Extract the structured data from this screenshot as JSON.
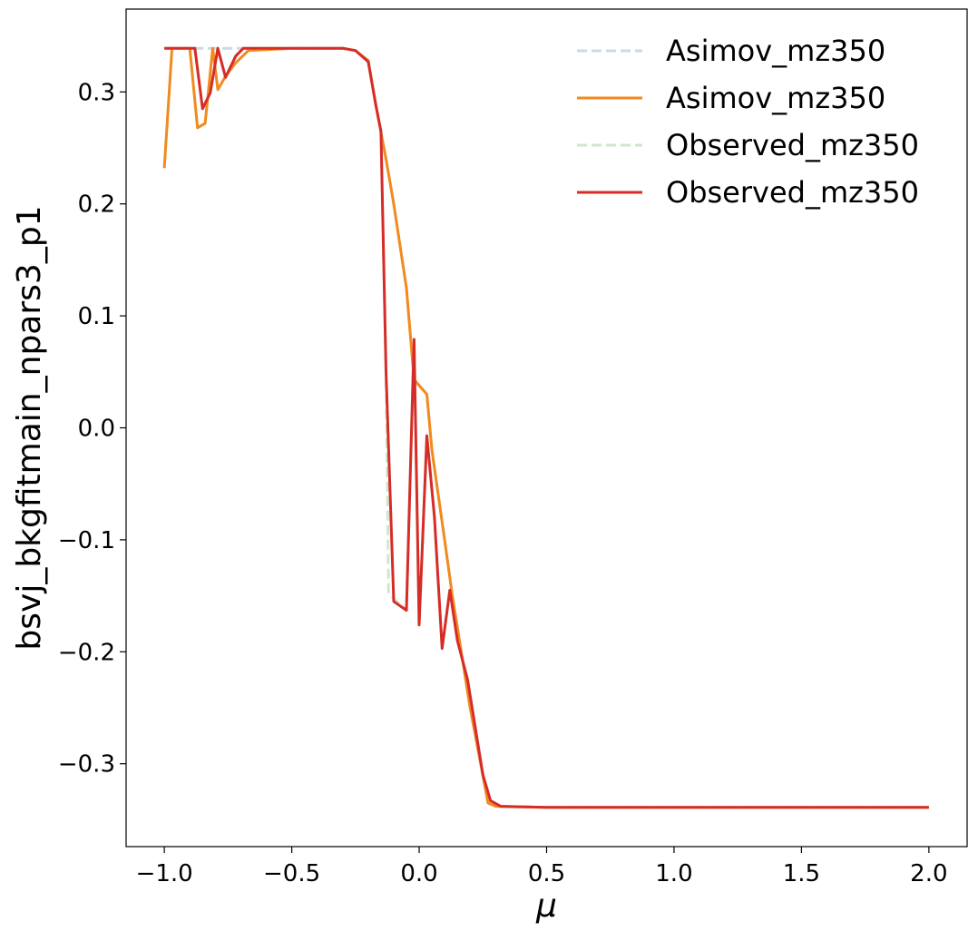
{
  "chart_data": {
    "type": "line",
    "title": "",
    "xlabel": "μ",
    "ylabel": "bsvj_bkgfitmain_npars3_p1",
    "xlim": [
      -1.15,
      2.15
    ],
    "ylim": [
      -0.374,
      0.374
    ],
    "xticks": [
      -1.0,
      -0.5,
      0.0,
      0.5,
      1.0,
      1.5,
      2.0
    ],
    "xtick_labels": [
      "−1.0",
      "−0.5",
      "0.0",
      "0.5",
      "1.0",
      "1.5",
      "2.0"
    ],
    "yticks": [
      -0.3,
      -0.2,
      -0.1,
      0.0,
      0.1,
      0.2,
      0.3
    ],
    "ytick_labels": [
      "−0.3",
      "−0.2",
      "−0.1",
      "0.0",
      "0.1",
      "0.2",
      "0.3"
    ],
    "grid": false,
    "legend_position": "top-right",
    "series": [
      {
        "name": "Asimov_mz350",
        "color": "#c9dbe6",
        "dash": true,
        "points": [
          [
            -1.0,
            0.339
          ],
          [
            -0.85,
            0.339
          ],
          [
            -0.7,
            0.339
          ],
          [
            -0.5,
            0.339
          ],
          [
            -0.3,
            0.339
          ],
          [
            -0.25,
            0.337
          ],
          [
            -0.2,
            0.328
          ],
          [
            -0.17,
            0.288
          ],
          [
            -0.13,
            0.24
          ],
          [
            -0.1,
            0.2
          ],
          [
            -0.05,
            0.125
          ],
          [
            -0.02,
            0.043
          ],
          [
            0.03,
            0.03
          ],
          [
            0.05,
            -0.02
          ],
          [
            0.1,
            -0.1
          ],
          [
            0.13,
            -0.15
          ],
          [
            0.2,
            -0.25
          ],
          [
            0.27,
            -0.335
          ],
          [
            0.3,
            -0.338
          ],
          [
            0.5,
            -0.339
          ],
          [
            1.0,
            -0.339
          ],
          [
            1.5,
            -0.339
          ],
          [
            2.0,
            -0.339
          ]
        ]
      },
      {
        "name": "Asimov_mz350",
        "color": "#f28a1e",
        "dash": false,
        "points": [
          [
            -1.0,
            0.232
          ],
          [
            -0.97,
            0.339
          ],
          [
            -0.9,
            0.339
          ],
          [
            -0.87,
            0.268
          ],
          [
            -0.84,
            0.272
          ],
          [
            -0.81,
            0.339
          ],
          [
            -0.79,
            0.302
          ],
          [
            -0.76,
            0.314
          ],
          [
            -0.72,
            0.326
          ],
          [
            -0.67,
            0.337
          ],
          [
            -0.5,
            0.339
          ],
          [
            -0.3,
            0.339
          ],
          [
            -0.25,
            0.337
          ],
          [
            -0.2,
            0.328
          ],
          [
            -0.17,
            0.288
          ],
          [
            -0.13,
            0.24
          ],
          [
            -0.1,
            0.2
          ],
          [
            -0.05,
            0.125
          ],
          [
            -0.02,
            0.043
          ],
          [
            0.03,
            0.03
          ],
          [
            0.05,
            -0.02
          ],
          [
            0.1,
            -0.1
          ],
          [
            0.13,
            -0.15
          ],
          [
            0.2,
            -0.25
          ],
          [
            0.27,
            -0.335
          ],
          [
            0.3,
            -0.338
          ],
          [
            0.5,
            -0.339
          ],
          [
            1.0,
            -0.339
          ],
          [
            1.5,
            -0.339
          ],
          [
            2.0,
            -0.339
          ]
        ]
      },
      {
        "name": "Observed_mz350",
        "color": "#cfe7cc",
        "dash": true,
        "points": [
          [
            -1.0,
            0.339
          ],
          [
            -0.88,
            0.339
          ],
          [
            -0.85,
            0.285
          ],
          [
            -0.82,
            0.299
          ],
          [
            -0.79,
            0.339
          ],
          [
            -0.76,
            0.313
          ],
          [
            -0.72,
            0.332
          ],
          [
            -0.69,
            0.339
          ],
          [
            -0.5,
            0.339
          ],
          [
            -0.3,
            0.339
          ],
          [
            -0.25,
            0.337
          ],
          [
            -0.2,
            0.327
          ],
          [
            -0.17,
            0.288
          ],
          [
            -0.15,
            0.265
          ],
          [
            -0.13,
            0.05
          ],
          [
            -0.12,
            -0.148
          ],
          [
            -0.08,
            -0.157
          ],
          [
            -0.05,
            -0.163
          ],
          [
            -0.02,
            0.079
          ],
          [
            0.0,
            -0.176
          ],
          [
            0.03,
            -0.007
          ],
          [
            0.06,
            -0.08
          ],
          [
            0.09,
            -0.197
          ],
          [
            0.12,
            -0.145
          ],
          [
            0.15,
            -0.19
          ],
          [
            0.19,
            -0.225
          ],
          [
            0.25,
            -0.31
          ],
          [
            0.28,
            -0.333
          ],
          [
            0.32,
            -0.338
          ],
          [
            0.5,
            -0.339
          ],
          [
            1.0,
            -0.339
          ],
          [
            1.5,
            -0.339
          ],
          [
            2.0,
            -0.339
          ]
        ]
      },
      {
        "name": "Observed_mz350",
        "color": "#d62c27",
        "dash": false,
        "points": [
          [
            -1.0,
            0.339
          ],
          [
            -0.88,
            0.339
          ],
          [
            -0.85,
            0.285
          ],
          [
            -0.82,
            0.299
          ],
          [
            -0.79,
            0.339
          ],
          [
            -0.76,
            0.313
          ],
          [
            -0.72,
            0.332
          ],
          [
            -0.69,
            0.339
          ],
          [
            -0.5,
            0.339
          ],
          [
            -0.3,
            0.339
          ],
          [
            -0.25,
            0.337
          ],
          [
            -0.2,
            0.327
          ],
          [
            -0.17,
            0.288
          ],
          [
            -0.15,
            0.265
          ],
          [
            -0.13,
            0.05
          ],
          [
            -0.1,
            -0.155
          ],
          [
            -0.05,
            -0.163
          ],
          [
            -0.02,
            0.079
          ],
          [
            0.0,
            -0.176
          ],
          [
            0.03,
            -0.007
          ],
          [
            0.06,
            -0.08
          ],
          [
            0.09,
            -0.197
          ],
          [
            0.12,
            -0.145
          ],
          [
            0.15,
            -0.19
          ],
          [
            0.19,
            -0.225
          ],
          [
            0.25,
            -0.31
          ],
          [
            0.28,
            -0.333
          ],
          [
            0.32,
            -0.338
          ],
          [
            0.5,
            -0.339
          ],
          [
            1.0,
            -0.339
          ],
          [
            1.5,
            -0.339
          ],
          [
            2.0,
            -0.339
          ]
        ]
      }
    ]
  }
}
